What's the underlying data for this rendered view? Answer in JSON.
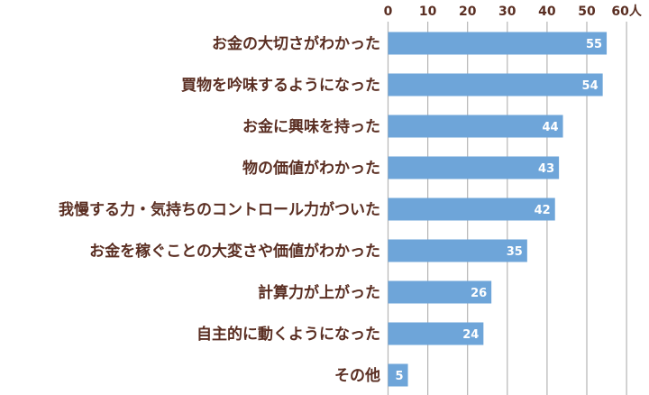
{
  "chart_data": {
    "type": "bar",
    "orientation": "horizontal",
    "categories": [
      "お金の大切さがわかった",
      "買物を吟味するようになった",
      "お金に興味を持った",
      "物の価値がわかった",
      "我慢する力・気持ちのコントロール力がついた",
      "お金を稼ぐことの大変さや価値がわかった",
      "計算力が上がった",
      "自主的に動くようになった",
      "その他"
    ],
    "values": [
      55,
      54,
      44,
      43,
      42,
      35,
      26,
      24,
      5
    ],
    "xticks": [
      "0",
      "10",
      "20",
      "30",
      "40",
      "50",
      "60"
    ],
    "unit": "人",
    "xlim": [
      0,
      60
    ],
    "grid": true,
    "colors": {
      "bar": "#6ea5d9",
      "text": "#5a2e22",
      "grid": "#b5b5b5"
    }
  }
}
